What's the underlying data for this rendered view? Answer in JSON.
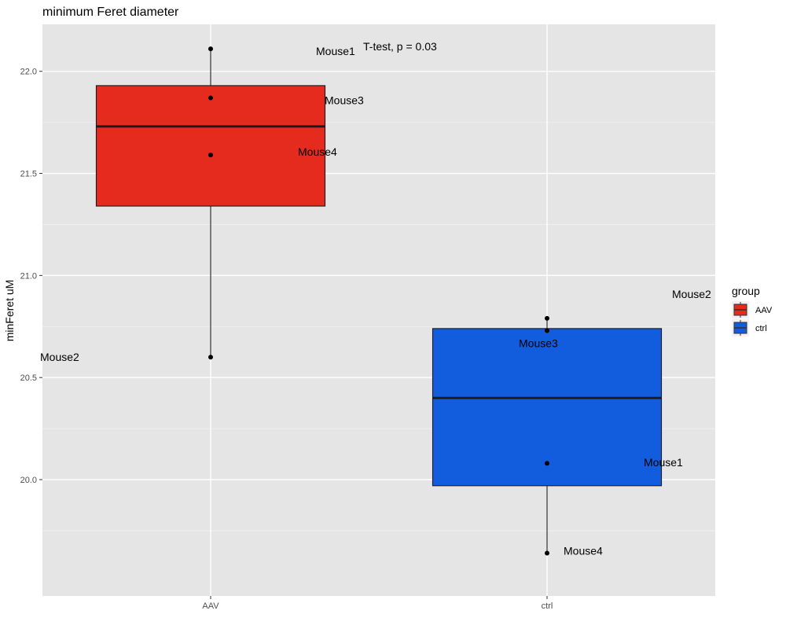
{
  "chart_data": {
    "type": "box",
    "title": "minimum Feret diameter",
    "xlabel": "",
    "ylabel": "minFeret uM",
    "ylim": [
      19.43,
      22.23
    ],
    "y_ticks": [
      20.0,
      20.5,
      21.0,
      21.5,
      22.0
    ],
    "y_tick_labels": [
      "20.0",
      "20.5",
      "21.0",
      "21.5",
      "22.0"
    ],
    "categories": [
      "AAV",
      "ctrl"
    ],
    "grid": true,
    "legend": {
      "title": "group",
      "position": "right",
      "entries": [
        {
          "label": "AAV",
          "color": "#E52B1E"
        },
        {
          "label": "ctrl",
          "color": "#125CDE"
        }
      ]
    },
    "annotation": "T-test, p = 0.03",
    "boxes": [
      {
        "group": "AAV",
        "color": "#E52B1E",
        "q1": 21.34,
        "median": 21.73,
        "q3": 21.93,
        "whisker_low": 20.6,
        "whisker_high": 22.11
      },
      {
        "group": "ctrl",
        "color": "#125CDE",
        "q1": 19.97,
        "median": 20.4,
        "q3": 20.74,
        "whisker_low": 19.64,
        "whisker_high": 20.79
      }
    ],
    "points": [
      {
        "group": "AAV",
        "label": "Mouse1",
        "y": 22.11
      },
      {
        "group": "AAV",
        "label": "Mouse3",
        "y": 21.87
      },
      {
        "group": "AAV",
        "label": "Mouse4",
        "y": 21.59
      },
      {
        "group": "AAV",
        "label": "Mouse2",
        "y": 20.6
      },
      {
        "group": "ctrl",
        "label": "Mouse2",
        "y": 20.79
      },
      {
        "group": "ctrl",
        "label": "Mouse3",
        "y": 20.73
      },
      {
        "group": "ctrl",
        "label": "Mouse1",
        "y": 20.08
      },
      {
        "group": "ctrl",
        "label": "Mouse4",
        "y": 19.64
      }
    ]
  }
}
